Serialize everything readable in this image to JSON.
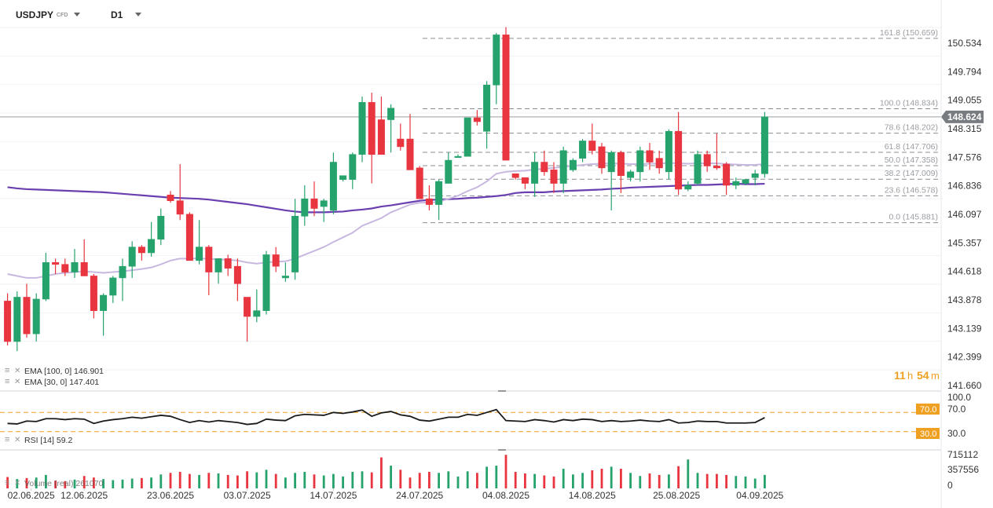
{
  "toolbar": {
    "symbol": "USDJPY",
    "symbol_tag": "CFD",
    "timeframe": "D1"
  },
  "price_axis": {
    "labels": [
      "150.534",
      "149.794",
      "149.055",
      "148.315",
      "147.576",
      "146.836",
      "146.097",
      "145.357",
      "144.618",
      "143.878",
      "143.139",
      "142.399",
      "141.660"
    ],
    "current_price": "148.624",
    "current_color": "#787b80"
  },
  "countdown": {
    "hours": "11",
    "h": "h",
    "minutes": "54",
    "m": "m",
    "color": "#f0a020"
  },
  "fibonacci": [
    {
      "label": "161.8 (150.659)",
      "price": 150.659
    },
    {
      "label": "100.0 (148.834)",
      "price": 148.834
    },
    {
      "label": "78.6 (148.202)",
      "price": 148.202
    },
    {
      "label": "61.8 (147.706)",
      "price": 147.706
    },
    {
      "label": "50.0 (147.358)",
      "price": 147.358
    },
    {
      "label": "38.2 (147.009)",
      "price": 147.009
    },
    {
      "label": "23.6 (146.578)",
      "price": 146.578
    },
    {
      "label": "0.0 (145.881)",
      "price": 145.881
    }
  ],
  "legend": {
    "ema100": "EMA  [100,  0]  146.901",
    "ema30": "EMA  [30,  0]  147.401",
    "rsi": "RSI  [14]  59.2",
    "volume": "Volume  (real)  261070"
  },
  "rsi_axis": {
    "labels": [
      "100.0",
      "70.0",
      "30.0"
    ],
    "level_color": "#f0a020"
  },
  "volume_axis": {
    "labels": [
      "715112",
      "357556",
      "0"
    ]
  },
  "date_axis": [
    "02.06.2025",
    "12.06.2025",
    "23.06.2025",
    "03.07.2025",
    "14.07.2025",
    "24.07.2025",
    "04.08.2025",
    "14.08.2025",
    "25.08.2025",
    "04.09.2025"
  ],
  "colors": {
    "up": "#26a36c",
    "down": "#e8353f",
    "ema100": "#6a3fb0",
    "ema30": "#c8b8e0",
    "rsi": "#1a1a1a"
  },
  "chart_data": {
    "type": "candlestick",
    "symbol": "USDJPY",
    "timeframe": "D1",
    "ylim": [
      141.66,
      150.9
    ],
    "candles": [
      {
        "o": 143.85,
        "h": 144.05,
        "l": 142.7,
        "c": 142.8
      },
      {
        "o": 142.8,
        "h": 144.1,
        "l": 142.55,
        "c": 143.95
      },
      {
        "o": 143.95,
        "h": 144.3,
        "l": 142.9,
        "c": 143.0
      },
      {
        "o": 143.0,
        "h": 144.05,
        "l": 142.8,
        "c": 143.9
      },
      {
        "o": 143.9,
        "h": 145.1,
        "l": 143.85,
        "c": 144.85
      },
      {
        "o": 144.85,
        "h": 144.95,
        "l": 144.55,
        "c": 144.8
      },
      {
        "o": 144.8,
        "h": 144.95,
        "l": 144.5,
        "c": 144.6
      },
      {
        "o": 144.6,
        "h": 145.2,
        "l": 144.45,
        "c": 144.85
      },
      {
        "o": 144.85,
        "h": 145.45,
        "l": 144.5,
        "c": 144.5
      },
      {
        "o": 144.5,
        "h": 144.55,
        "l": 143.4,
        "c": 143.6
      },
      {
        "o": 143.6,
        "h": 144.05,
        "l": 142.95,
        "c": 144.0
      },
      {
        "o": 144.0,
        "h": 144.5,
        "l": 143.8,
        "c": 144.45
      },
      {
        "o": 144.45,
        "h": 144.95,
        "l": 143.85,
        "c": 144.75
      },
      {
        "o": 144.75,
        "h": 145.4,
        "l": 144.45,
        "c": 145.25
      },
      {
        "o": 145.25,
        "h": 145.3,
        "l": 144.9,
        "c": 145.1
      },
      {
        "o": 145.1,
        "h": 145.9,
        "l": 145.0,
        "c": 145.45
      },
      {
        "o": 145.45,
        "h": 146.25,
        "l": 145.3,
        "c": 146.05
      },
      {
        "o": 146.6,
        "h": 146.7,
        "l": 146.4,
        "c": 146.45
      },
      {
        "o": 146.45,
        "h": 147.4,
        "l": 145.95,
        "c": 146.1
      },
      {
        "o": 146.1,
        "h": 146.15,
        "l": 144.9,
        "c": 144.9
      },
      {
        "o": 144.9,
        "h": 145.95,
        "l": 144.8,
        "c": 145.25
      },
      {
        "o": 145.25,
        "h": 145.3,
        "l": 144.0,
        "c": 144.6
      },
      {
        "o": 144.6,
        "h": 144.95,
        "l": 144.3,
        "c": 144.95
      },
      {
        "o": 144.95,
        "h": 145.05,
        "l": 144.5,
        "c": 144.7
      },
      {
        "o": 144.75,
        "h": 144.95,
        "l": 143.85,
        "c": 144.3
      },
      {
        "o": 143.95,
        "h": 143.95,
        "l": 142.8,
        "c": 143.45
      },
      {
        "o": 143.45,
        "h": 144.15,
        "l": 143.3,
        "c": 143.6
      },
      {
        "o": 143.6,
        "h": 145.15,
        "l": 143.5,
        "c": 145.05
      },
      {
        "o": 145.05,
        "h": 145.25,
        "l": 144.6,
        "c": 144.75
      },
      {
        "o": 144.45,
        "h": 144.85,
        "l": 144.35,
        "c": 144.5
      },
      {
        "o": 144.6,
        "h": 146.5,
        "l": 144.4,
        "c": 146.05
      },
      {
        "o": 146.05,
        "h": 146.85,
        "l": 145.8,
        "c": 146.5
      },
      {
        "o": 146.5,
        "h": 146.95,
        "l": 146.05,
        "c": 146.25
      },
      {
        "o": 146.3,
        "h": 146.5,
        "l": 145.9,
        "c": 146.45
      },
      {
        "o": 146.2,
        "h": 147.7,
        "l": 146.1,
        "c": 147.45
      },
      {
        "o": 147.0,
        "h": 147.05,
        "l": 146.95,
        "c": 147.1
      },
      {
        "o": 147.0,
        "h": 147.7,
        "l": 146.75,
        "c": 147.65
      },
      {
        "o": 147.65,
        "h": 149.15,
        "l": 147.45,
        "c": 149.0
      },
      {
        "o": 149.0,
        "h": 149.25,
        "l": 146.9,
        "c": 147.65
      },
      {
        "o": 148.55,
        "h": 149.15,
        "l": 147.65,
        "c": 147.65
      },
      {
        "o": 148.55,
        "h": 148.95,
        "l": 147.7,
        "c": 148.85
      },
      {
        "o": 148.05,
        "h": 148.45,
        "l": 147.75,
        "c": 147.85
      },
      {
        "o": 148.05,
        "h": 148.7,
        "l": 147.25,
        "c": 147.25
      },
      {
        "o": 147.3,
        "h": 147.35,
        "l": 146.5,
        "c": 146.5
      },
      {
        "o": 146.5,
        "h": 146.85,
        "l": 146.2,
        "c": 146.35
      },
      {
        "o": 146.35,
        "h": 147.0,
        "l": 145.95,
        "c": 146.95
      },
      {
        "o": 146.9,
        "h": 147.7,
        "l": 146.95,
        "c": 147.5
      },
      {
        "o": 147.6,
        "h": 147.65,
        "l": 147.6,
        "c": 147.6
      },
      {
        "o": 147.6,
        "h": 148.6,
        "l": 147.65,
        "c": 148.6
      },
      {
        "o": 148.6,
        "h": 148.8,
        "l": 148.4,
        "c": 148.5
      },
      {
        "o": 148.25,
        "h": 149.55,
        "l": 147.8,
        "c": 149.45
      },
      {
        "o": 149.45,
        "h": 150.8,
        "l": 148.95,
        "c": 150.75
      },
      {
        "o": 150.75,
        "h": 150.95,
        "l": 147.5,
        "c": 147.5
      },
      {
        "o": 147.15,
        "h": 147.1,
        "l": 147.0,
        "c": 147.05
      },
      {
        "o": 147.05,
        "h": 147.05,
        "l": 146.75,
        "c": 146.9
      },
      {
        "o": 146.9,
        "h": 147.7,
        "l": 146.55,
        "c": 147.45
      },
      {
        "o": 147.45,
        "h": 147.75,
        "l": 147.1,
        "c": 147.2
      },
      {
        "o": 147.25,
        "h": 147.45,
        "l": 146.65,
        "c": 146.9
      },
      {
        "o": 146.9,
        "h": 147.85,
        "l": 146.65,
        "c": 147.75
      },
      {
        "o": 147.25,
        "h": 147.55,
        "l": 147.2,
        "c": 147.5
      },
      {
        "o": 147.55,
        "h": 148.05,
        "l": 147.45,
        "c": 148.0
      },
      {
        "o": 148.0,
        "h": 148.45,
        "l": 147.65,
        "c": 147.75
      },
      {
        "o": 147.85,
        "h": 147.95,
        "l": 147.15,
        "c": 147.3
      },
      {
        "o": 147.2,
        "h": 147.75,
        "l": 146.2,
        "c": 147.7
      },
      {
        "o": 147.7,
        "h": 147.75,
        "l": 146.65,
        "c": 147.1
      },
      {
        "o": 147.05,
        "h": 147.25,
        "l": 146.95,
        "c": 147.2
      },
      {
        "o": 147.2,
        "h": 147.85,
        "l": 146.95,
        "c": 147.75
      },
      {
        "o": 147.75,
        "h": 147.95,
        "l": 147.25,
        "c": 147.45
      },
      {
        "o": 147.55,
        "h": 147.75,
        "l": 147.15,
        "c": 147.3
      },
      {
        "o": 147.2,
        "h": 148.3,
        "l": 147.0,
        "c": 148.25
      },
      {
        "o": 148.25,
        "h": 148.75,
        "l": 146.6,
        "c": 146.75
      },
      {
        "o": 146.75,
        "h": 146.95,
        "l": 146.7,
        "c": 146.85
      },
      {
        "o": 146.9,
        "h": 147.75,
        "l": 146.85,
        "c": 147.65
      },
      {
        "o": 147.65,
        "h": 147.75,
        "l": 147.2,
        "c": 147.35
      },
      {
        "o": 147.35,
        "h": 148.2,
        "l": 147.25,
        "c": 147.3
      },
      {
        "o": 147.4,
        "h": 147.45,
        "l": 146.6,
        "c": 146.85
      },
      {
        "o": 146.85,
        "h": 147.05,
        "l": 146.75,
        "c": 146.95
      },
      {
        "o": 146.9,
        "h": 147.0,
        "l": 146.85,
        "c": 147.0
      },
      {
        "o": 147.05,
        "h": 147.25,
        "l": 146.85,
        "c": 147.15
      },
      {
        "o": 147.15,
        "h": 148.75,
        "l": 147.05,
        "c": 148.624
      }
    ],
    "ema100": [
      146.75,
      146.74,
      146.73,
      146.72,
      146.71,
      146.7,
      146.69,
      146.68,
      146.67,
      146.65,
      146.63,
      146.61,
      146.59,
      146.57,
      146.55,
      146.53,
      146.52,
      146.51,
      146.5,
      146.48,
      146.45,
      146.42,
      146.39,
      146.36,
      146.32,
      146.28,
      146.24,
      146.2,
      146.17,
      146.15,
      146.15,
      146.15,
      146.16,
      146.17,
      146.2,
      146.22,
      146.25,
      146.3,
      146.33,
      146.37,
      146.41,
      146.45,
      146.47,
      146.48,
      146.49,
      146.5,
      146.52,
      146.53,
      146.55,
      146.57,
      146.6,
      146.65,
      146.67,
      146.67,
      146.67,
      146.69,
      146.7,
      146.71,
      146.72,
      146.73,
      146.74,
      146.76,
      146.77,
      146.79,
      146.8,
      146.81,
      146.82,
      146.83,
      146.84,
      146.85,
      146.86,
      146.86,
      146.87,
      146.88,
      146.89,
      146.88,
      146.88,
      146.89,
      146.89,
      146.901
    ],
    "ema30": [
      144.55,
      144.5,
      144.45,
      144.45,
      144.5,
      144.55,
      144.58,
      144.6,
      144.62,
      144.6,
      144.58,
      144.6,
      144.62,
      144.65,
      144.68,
      144.72,
      144.8,
      144.9,
      144.95,
      144.95,
      144.96,
      144.94,
      144.93,
      144.92,
      144.9,
      144.85,
      144.82,
      144.85,
      144.87,
      144.88,
      144.95,
      145.05,
      145.15,
      145.25,
      145.38,
      145.5,
      145.62,
      145.8,
      145.9,
      146.0,
      146.15,
      146.25,
      146.35,
      146.4,
      146.4,
      146.42,
      146.5,
      146.58,
      146.7,
      146.8,
      146.95,
      147.15,
      147.2,
      147.22,
      147.23,
      147.26,
      147.28,
      147.3,
      147.33,
      147.35,
      147.38,
      147.4,
      147.41,
      147.42,
      147.41,
      147.4,
      147.4,
      147.41,
      147.41,
      147.43,
      147.42,
      147.41,
      147.42,
      147.42,
      147.42,
      147.4,
      147.39,
      147.38,
      147.38,
      147.401
    ],
    "rsi": [
      47,
      46,
      52,
      51,
      57,
      57,
      55,
      57,
      56,
      47,
      52,
      55,
      57,
      60,
      58,
      61,
      64,
      62,
      55,
      49,
      53,
      50,
      53,
      51,
      49,
      45,
      47,
      56,
      54,
      53,
      63,
      66,
      65,
      64,
      70,
      68,
      71,
      75,
      62,
      69,
      72,
      65,
      62,
      54,
      52,
      56,
      60,
      60,
      66,
      64,
      70,
      76,
      53,
      52,
      51,
      55,
      53,
      50,
      55,
      53,
      56,
      55,
      51,
      53,
      51,
      52,
      54,
      52,
      51,
      55,
      48,
      49,
      52,
      51,
      51,
      48,
      48,
      48,
      49,
      59.2
    ],
    "volume": [
      220000,
      180000,
      200000,
      210000,
      260000,
      150000,
      140000,
      170000,
      240000,
      210000,
      180000,
      160000,
      170000,
      190000,
      200000,
      210000,
      270000,
      300000,
      320000,
      280000,
      260000,
      300000,
      290000,
      260000,
      250000,
      330000,
      310000,
      360000,
      280000,
      210000,
      300000,
      320000,
      270000,
      250000,
      280000,
      230000,
      320000,
      330000,
      310000,
      600000,
      440000,
      360000,
      210000,
      300000,
      320000,
      300000,
      330000,
      230000,
      330000,
      300000,
      420000,
      440000,
      650000,
      320000,
      290000,
      280000,
      250000,
      230000,
      380000,
      270000,
      300000,
      350000,
      380000,
      420000,
      380000,
      300000,
      240000,
      290000,
      260000,
      270000,
      430000,
      560000,
      300000,
      280000,
      280000,
      260000,
      240000,
      230000,
      190000,
      261070
    ]
  }
}
